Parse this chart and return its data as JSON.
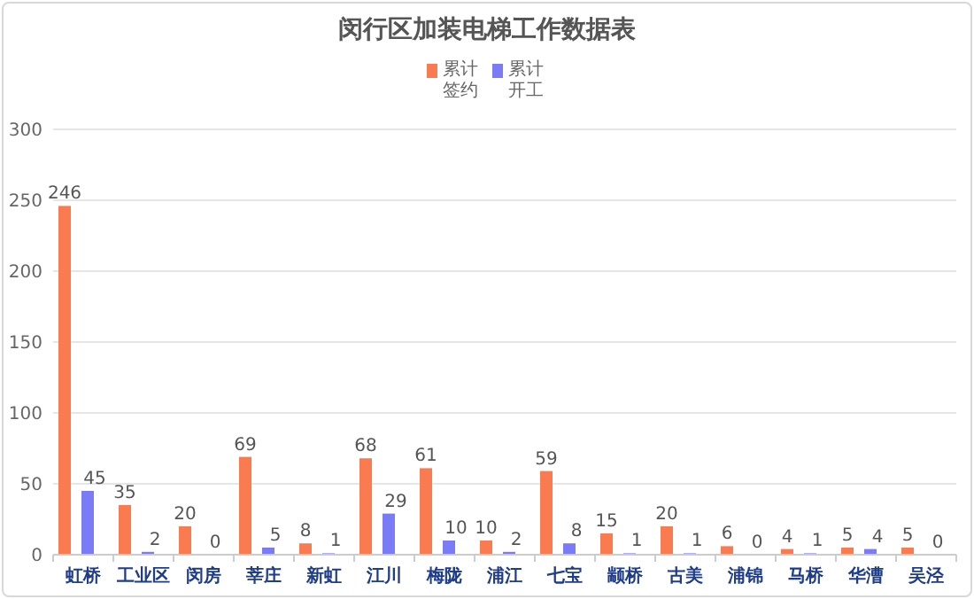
{
  "chart_data": {
    "type": "bar",
    "title": "闵行区加装电梯工作数据表",
    "categories": [
      "虹桥",
      "工业区",
      "闵房",
      "莘庄",
      "新虹",
      "江川",
      "梅陇",
      "浦江",
      "七宝",
      "颛桥",
      "古美",
      "浦锦",
      "马桥",
      "华漕",
      "吴泾"
    ],
    "series": [
      {
        "name": "累计签约",
        "color": "#f97b4f",
        "values": [
          246,
          35,
          20,
          69,
          8,
          68,
          61,
          10,
          59,
          15,
          20,
          6,
          4,
          5,
          5
        ]
      },
      {
        "name": "累计开工",
        "color": "#7b7bf7",
        "values": [
          45,
          2,
          0,
          5,
          1,
          29,
          10,
          2,
          8,
          1,
          1,
          0,
          1,
          4,
          0
        ]
      }
    ],
    "ylim": [
      0,
      300
    ],
    "yticks": [
      0,
      50,
      100,
      150,
      200,
      250,
      300
    ],
    "grid": "y",
    "legend": "top",
    "data_labels": true
  }
}
